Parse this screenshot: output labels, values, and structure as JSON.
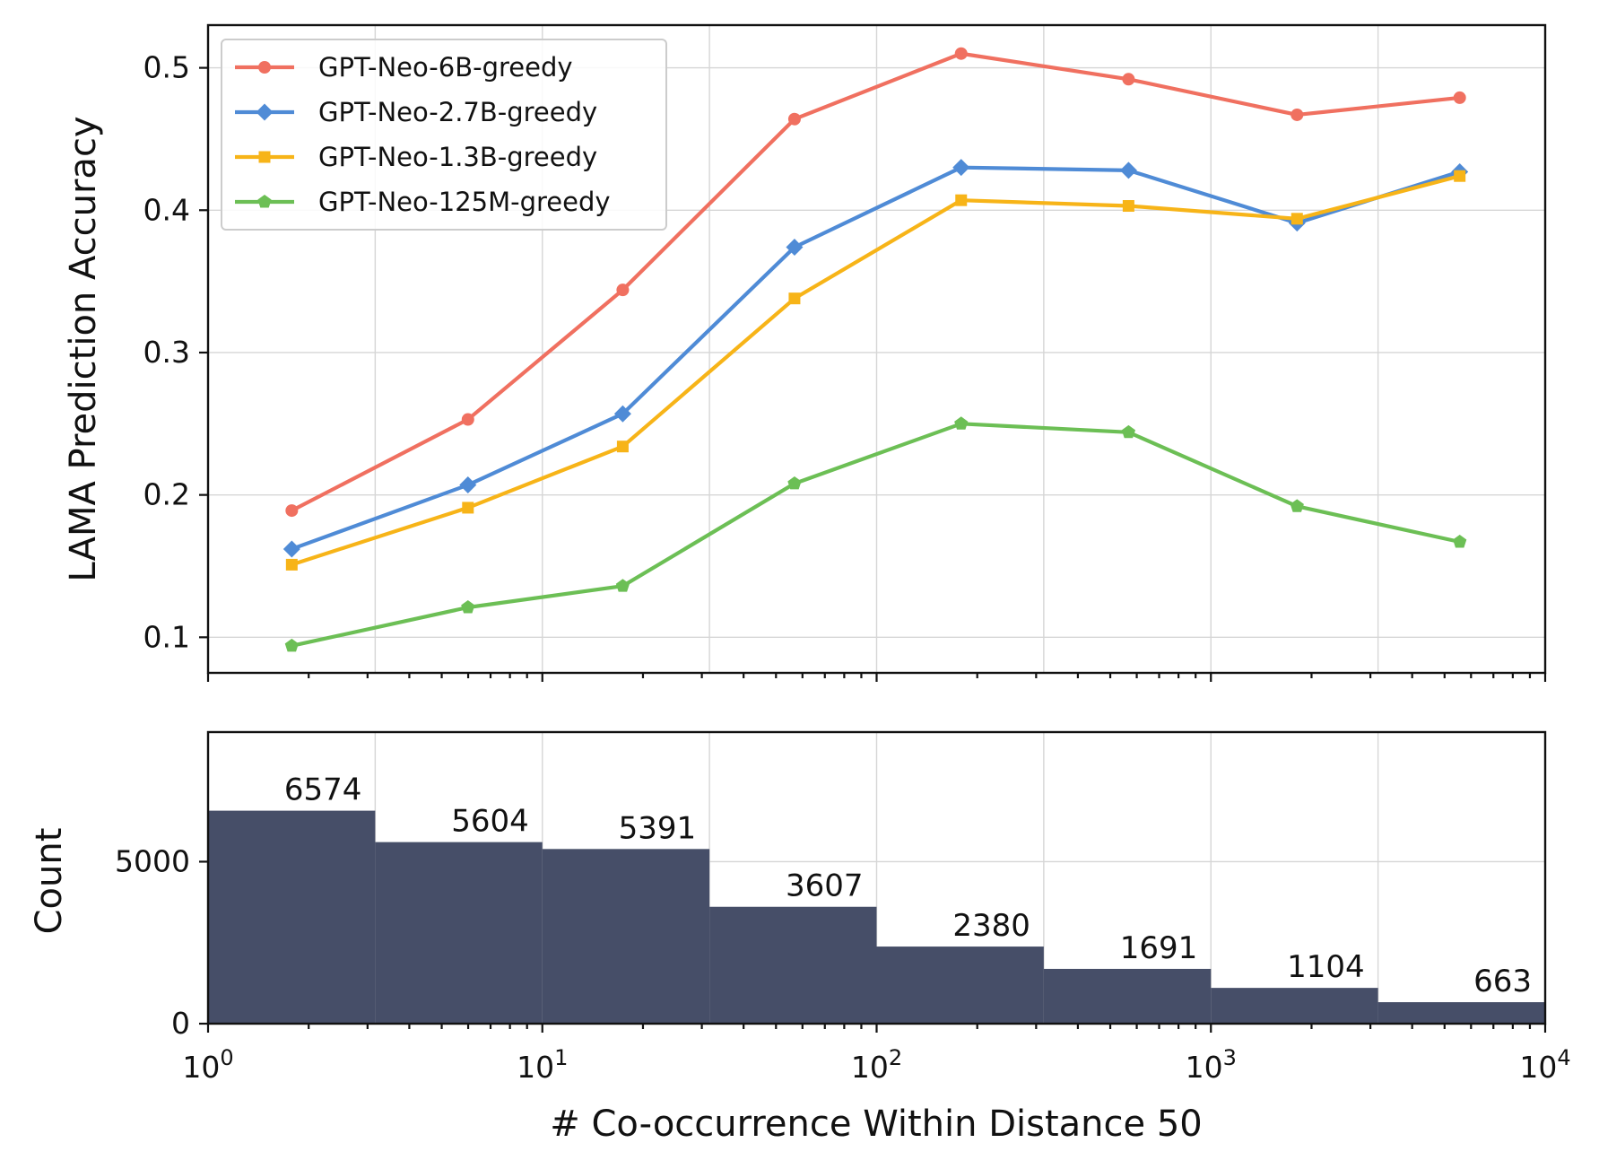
{
  "chart_data": [
    {
      "type": "line",
      "ylabel": "LAMA Prediction Accuracy",
      "xscale": "log",
      "xlim": [
        1,
        10000
      ],
      "ylim": [
        0.075,
        0.53
      ],
      "yticks": [
        "0.1",
        "0.2",
        "0.3",
        "0.4",
        "0.5"
      ],
      "grid": true,
      "legend_position": "upper-left",
      "x": [
        1.78,
        5.99,
        17.4,
        56.8,
        179,
        567,
        1810,
        5550
      ],
      "series": [
        {
          "name": "GPT-Neo-6B-greedy",
          "color": "#f07060",
          "marker": "circle",
          "values": [
            0.189,
            0.253,
            0.344,
            0.464,
            0.51,
            0.492,
            0.467,
            0.479
          ]
        },
        {
          "name": "GPT-Neo-2.7B-greedy",
          "color": "#4f8bd6",
          "marker": "diamond",
          "values": [
            0.162,
            0.207,
            0.257,
            0.374,
            0.43,
            0.428,
            0.391,
            0.427
          ]
        },
        {
          "name": "GPT-Neo-1.3B-greedy",
          "color": "#f7b418",
          "marker": "square",
          "values": [
            0.151,
            0.191,
            0.234,
            0.338,
            0.407,
            0.403,
            0.394,
            0.424
          ]
        },
        {
          "name": "GPT-Neo-125M-greedy",
          "color": "#6cbf55",
          "marker": "pentagon",
          "values": [
            0.094,
            0.121,
            0.136,
            0.208,
            0.25,
            0.244,
            0.192,
            0.167
          ]
        }
      ]
    },
    {
      "type": "bar",
      "xlabel": "# Co-occurrence Within Distance 50",
      "ylabel": "Count",
      "xscale": "log",
      "xlim": [
        1,
        10000
      ],
      "ylim": [
        0,
        9000
      ],
      "yticks": [
        "0",
        "5000"
      ],
      "xticks": [
        {
          "base": "10",
          "exp": "0"
        },
        {
          "base": "10",
          "exp": "1"
        },
        {
          "base": "10",
          "exp": "2"
        },
        {
          "base": "10",
          "exp": "3"
        },
        {
          "base": "10",
          "exp": "4"
        }
      ],
      "grid": true,
      "bar_color": "#464e68",
      "bins": [
        1,
        3.162,
        10,
        31.62,
        100,
        316.2,
        1000,
        3162,
        10000
      ],
      "values": [
        6574,
        5604,
        5391,
        3607,
        2380,
        1691,
        1104,
        663
      ],
      "labels": [
        "6574",
        "5604",
        "5391",
        "3607",
        "2380",
        "1691",
        "1104",
        "663"
      ]
    }
  ]
}
